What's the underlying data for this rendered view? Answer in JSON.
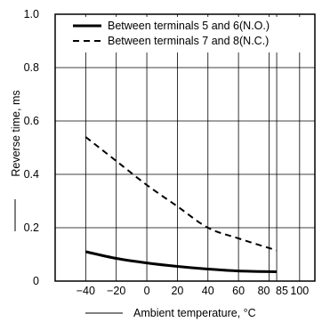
{
  "chart_data": {
    "type": "line",
    "title": "",
    "xlabel": "Ambient temperature, °C",
    "ylabel": "Reverse time, ms",
    "xlim": [
      -60,
      110
    ],
    "ylim": [
      0,
      1.0
    ],
    "x_ticks": [
      -40,
      -20,
      0,
      20,
      40,
      60,
      80,
      85,
      100
    ],
    "x_tick_labels": [
      "−40",
      "−20",
      "0",
      "20",
      "40",
      "60",
      "80",
      "85",
      "100"
    ],
    "y_ticks": [
      0,
      0.2,
      0.4,
      0.6,
      0.8,
      1.0
    ],
    "y_tick_labels": [
      "0",
      "0.2",
      "0.4",
      "0.6",
      "0.8",
      "1.0"
    ],
    "grid": true,
    "legend_position": "top",
    "series": [
      {
        "name": "Between terminals 5 and 6(N.O.)",
        "style": "solid",
        "color": "#000000",
        "x": [
          -40,
          -20,
          0,
          20,
          40,
          60,
          85
        ],
        "y": [
          0.11,
          0.085,
          0.068,
          0.055,
          0.045,
          0.038,
          0.035
        ]
      },
      {
        "name": "Between terminals 7 and 8(N.C.)",
        "style": "dashed",
        "color": "#000000",
        "x": [
          -40,
          -20,
          0,
          20,
          40,
          60,
          85
        ],
        "y": [
          0.54,
          0.45,
          0.36,
          0.28,
          0.2,
          0.16,
          0.115
        ]
      }
    ]
  }
}
